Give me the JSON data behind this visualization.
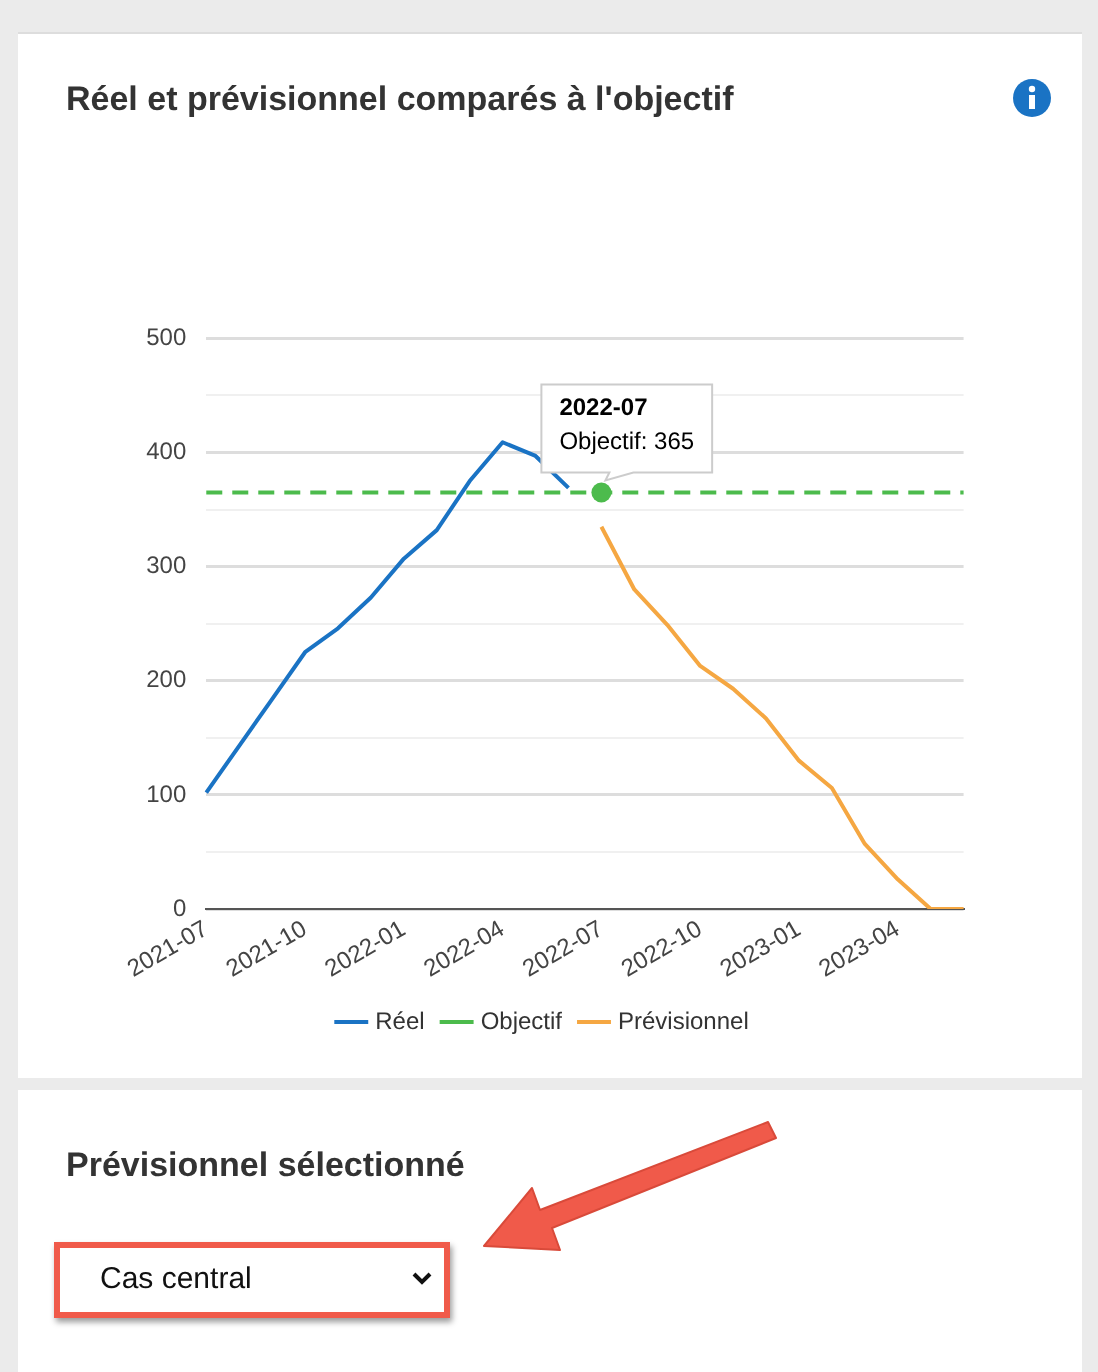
{
  "chart_data": {
    "type": "line",
    "title": "Réel et prévisionnel comparés à l'objectif",
    "categories": [
      "2021-07",
      null,
      null,
      "2021-10",
      null,
      null,
      "2022-01",
      null,
      null,
      "2022-04",
      null,
      null,
      "2022-07",
      null,
      null,
      "2022-10",
      null,
      null,
      "2023-01",
      null,
      null,
      "2023-04",
      null,
      null
    ],
    "series": [
      {
        "name": "Réel",
        "color": "#1a73c4",
        "values": [
          102,
          143,
          184,
          225,
          246,
          273,
          307,
          332,
          375,
          409,
          397,
          369,
          null,
          null,
          null,
          null,
          null,
          null,
          null,
          null,
          null,
          null,
          null,
          null
        ]
      },
      {
        "name": "Objectif",
        "color": "#4cbb4c",
        "line_style": "dashed",
        "values": [
          365,
          365,
          365,
          365,
          365,
          365,
          365,
          365,
          365,
          365,
          365,
          365,
          365,
          365,
          365,
          365,
          365,
          365,
          365,
          365,
          365,
          365,
          365,
          365
        ]
      },
      {
        "name": "Prévisionnel",
        "color": "#f5a742",
        "values": [
          null,
          null,
          null,
          null,
          null,
          null,
          null,
          null,
          null,
          null,
          null,
          null,
          335,
          280,
          249,
          213,
          193,
          167,
          130,
          106,
          57,
          26,
          0,
          0
        ]
      }
    ],
    "ylim": [
      0,
      500
    ],
    "yticks": [
      0,
      {
        "value": 50,
        "label": null
      },
      100,
      {
        "value": 150,
        "label": null
      },
      200,
      {
        "value": 250,
        "label": null
      },
      300,
      {
        "value": 350,
        "label": null
      },
      400,
      {
        "value": 450,
        "label": null
      },
      500
    ],
    "grid": "y",
    "legend": "bottom",
    "marker": "none",
    "line_style": "solid",
    "annotations": [
      "2022-07",
      {
        "text": "Objectif: 365",
        "x": "2022-07",
        "y": 365
      },
      "Prévisionnel sélectionné",
      "Cas central"
    ]
  }
}
